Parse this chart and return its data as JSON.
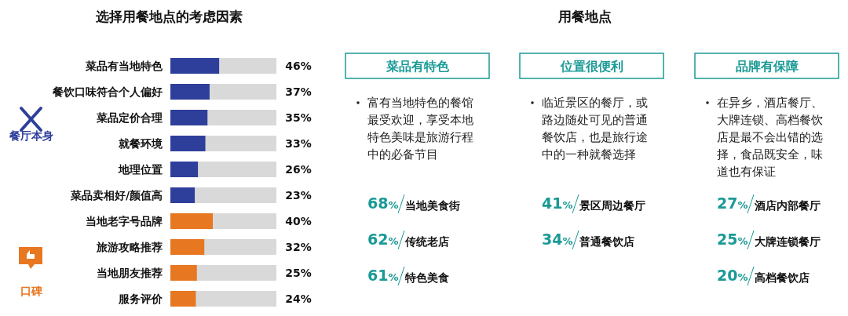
{
  "chart_data": [
    {
      "type": "bar",
      "orientation": "horizontal",
      "title": "选择用餐地点的考虑因素",
      "categories": [
        "菜品有当地特色",
        "餐饮口味符合个人偏好",
        "菜品定价合理",
        "就餐环境",
        "地理位置",
        "菜品卖相好/颜值高",
        "当地老字号品牌",
        "旅游攻略推荐",
        "当地朋友推荐",
        "服务评价"
      ],
      "values": [
        46,
        37,
        35,
        33,
        26,
        23,
        40,
        32,
        25,
        24
      ],
      "value_labels": [
        "46%",
        "37%",
        "35%",
        "33%",
        "26%",
        "23%",
        "40%",
        "32%",
        "25%",
        "24%"
      ],
      "colors": [
        "#2e3f9b",
        "#2e3f9b",
        "#2e3f9b",
        "#2e3f9b",
        "#2e3f9b",
        "#2e3f9b",
        "#e87722",
        "#e87722",
        "#e87722",
        "#e87722"
      ],
      "xlim": [
        0,
        100
      ],
      "annotations": [
        "餐厅本身",
        "口碑"
      ]
    },
    {
      "type": "other",
      "title": "用餐地点",
      "categories": [
        "当地美食街",
        "传统老店",
        "特色美食",
        "景区周边餐厅",
        "普通餐饮店",
        "酒店内部餐厅",
        "大牌连锁餐厅",
        "高档餐饮店"
      ],
      "series": [
        {
          "name": "菜品有特色",
          "color": "#1a9a96",
          "values": [
            68,
            62,
            61,
            null,
            null,
            null,
            null,
            null
          ],
          "value_labels": [
            "68%",
            "62%",
            "61%",
            null,
            null,
            null,
            null,
            null
          ]
        },
        {
          "name": "位置很便利",
          "color": "#1a9a96",
          "values": [
            null,
            null,
            null,
            41,
            34,
            null,
            null,
            null
          ],
          "value_labels": [
            null,
            null,
            null,
            "41%",
            "34%",
            null,
            null,
            null
          ]
        },
        {
          "name": "品牌有保障",
          "color": "#1a9a96",
          "values": [
            null,
            null,
            null,
            null,
            null,
            27,
            25,
            20
          ],
          "value_labels": [
            null,
            null,
            null,
            null,
            null,
            "27%",
            "25%",
            "20%"
          ]
        }
      ],
      "annotations": [
        "富有当地特色的餐馆最受欢迎，享受本地特色美味是旅游行程中的必备节目",
        "临近景区的餐厅，或路边随处可见的普通餐饮店，也是旅行途中的一种就餐选择",
        "在异乡，酒店餐厅、大牌连锁、高档餐饮店是最不会出错的选择，食品既安全，味道也有保证"
      ]
    }
  ]
}
